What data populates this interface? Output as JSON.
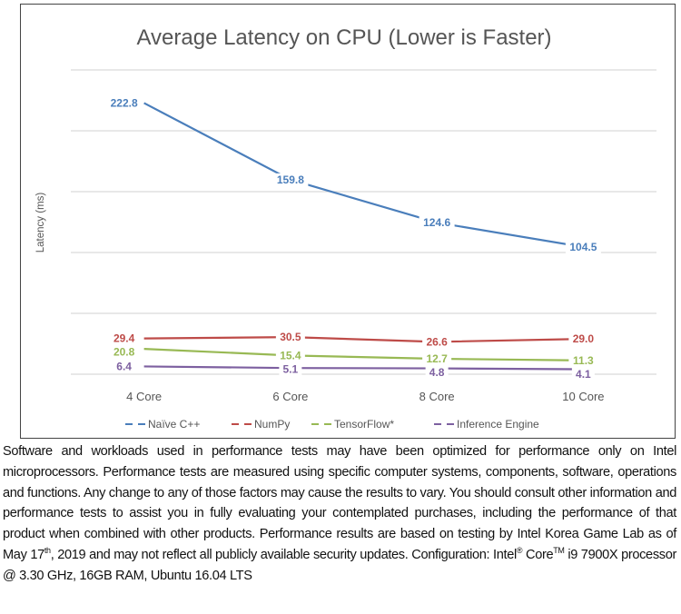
{
  "chart_data": {
    "type": "line",
    "title": "Average Latency on CPU (Lower is Faster)",
    "xlabel": "",
    "ylabel": "Latency (ms)",
    "ylim": [
      0,
      250
    ],
    "y_gridlines": [
      0,
      50,
      100,
      150,
      200,
      250
    ],
    "y_tick_labels_shown": false,
    "grid": true,
    "legend": "bottom",
    "categories": [
      "4 Core",
      "6 Core",
      "8 Core",
      "10 Core"
    ],
    "series": [
      {
        "name": "Naïve C++",
        "color": "#4a7ebb",
        "values": [
          222.8,
          159.8,
          124.6,
          104.5
        ],
        "labels": [
          "222.8",
          "159.8",
          "124.6",
          "104.5"
        ]
      },
      {
        "name": "NumPy",
        "color": "#be4b48",
        "values": [
          29.4,
          30.5,
          26.6,
          29.0
        ],
        "labels": [
          "29.4",
          "30.5",
          "26.6",
          "29.0"
        ]
      },
      {
        "name": "TensorFlow*",
        "color": "#98b954",
        "values": [
          20.8,
          15.4,
          12.7,
          11.3
        ],
        "labels": [
          "20.8",
          "15.4",
          "12.7",
          "11.3"
        ]
      },
      {
        "name": "Inference Engine",
        "color": "#7d60a0",
        "values": [
          6.4,
          5.1,
          4.8,
          4.1
        ],
        "labels": [
          "6.4",
          "5.1",
          "4.8",
          "4.1"
        ]
      }
    ]
  },
  "disclaimer": {
    "part1": "Software and workloads used in performance tests may have been optimized for performance only on Intel microprocessors. Performance tests are measured using specific computer systems, components, software, operations and functions. Any change to any of those factors may cause the results to vary. You should consult other information and performance tests to assist you in fully evaluating your contemplated purchases, including the performance of that product when combined with other products. Performance results are based on testing by Intel Korea Game Lab as of May 17",
    "sup_th": "th",
    "part2": ", 2019 and may not reflect all publicly available security updates. Configuration: Intel",
    "sup_reg": "®",
    "part3": " Core",
    "sup_tm": "TM",
    "part4": " i9 7900X processor @ 3.30 GHz, 16GB RAM, Ubuntu 16.04 LTS"
  }
}
